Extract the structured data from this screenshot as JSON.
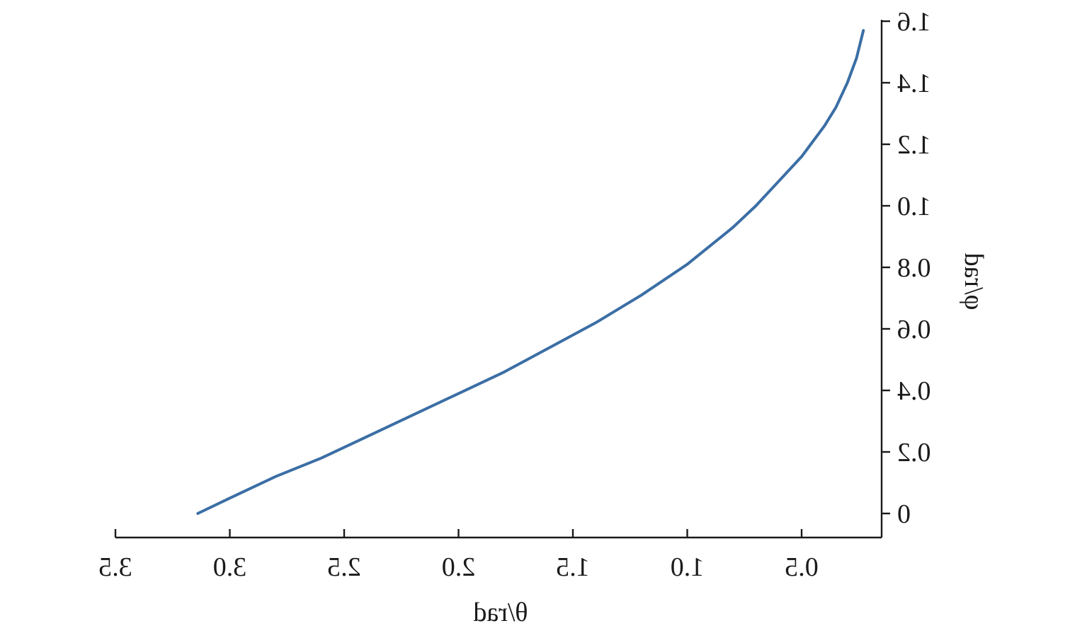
{
  "chart_data": {
    "type": "line",
    "title": "",
    "xlabel": "θ/rad",
    "ylabel": "φ/rad",
    "xlim": [
      0,
      3.5
    ],
    "ylim": [
      0,
      1.6
    ],
    "xticks": [
      0.5,
      1.0,
      1.5,
      2.0,
      2.5,
      3.0,
      3.5
    ],
    "xtick_labels": [
      "0.5",
      "1.0",
      "1.5",
      "2.0",
      "2.5",
      "3.0",
      "3.5"
    ],
    "yticks": [
      0,
      0.2,
      0.4,
      0.6,
      0.8,
      1.0,
      1.2,
      1.4,
      1.6
    ],
    "ytick_labels": [
      "0",
      "0.2",
      "0.4",
      "0.6",
      "0.8",
      "1.0",
      "1.2",
      "1.4",
      "1.6"
    ],
    "grid": false,
    "mirrored_horizontally": true,
    "series": [
      {
        "color": "#3b6ea5",
        "x": [
          3.14,
          3.0,
          2.8,
          2.6,
          2.4,
          2.2,
          2.0,
          1.8,
          1.6,
          1.4,
          1.2,
          1.0,
          0.9,
          0.8,
          0.7,
          0.6,
          0.5,
          0.4,
          0.35,
          0.3,
          0.26,
          0.23
        ],
        "y": [
          0.0,
          0.05,
          0.12,
          0.18,
          0.25,
          0.32,
          0.39,
          0.46,
          0.54,
          0.62,
          0.71,
          0.81,
          0.87,
          0.93,
          1.0,
          1.08,
          1.16,
          1.26,
          1.32,
          1.4,
          1.48,
          1.57
        ]
      }
    ]
  }
}
